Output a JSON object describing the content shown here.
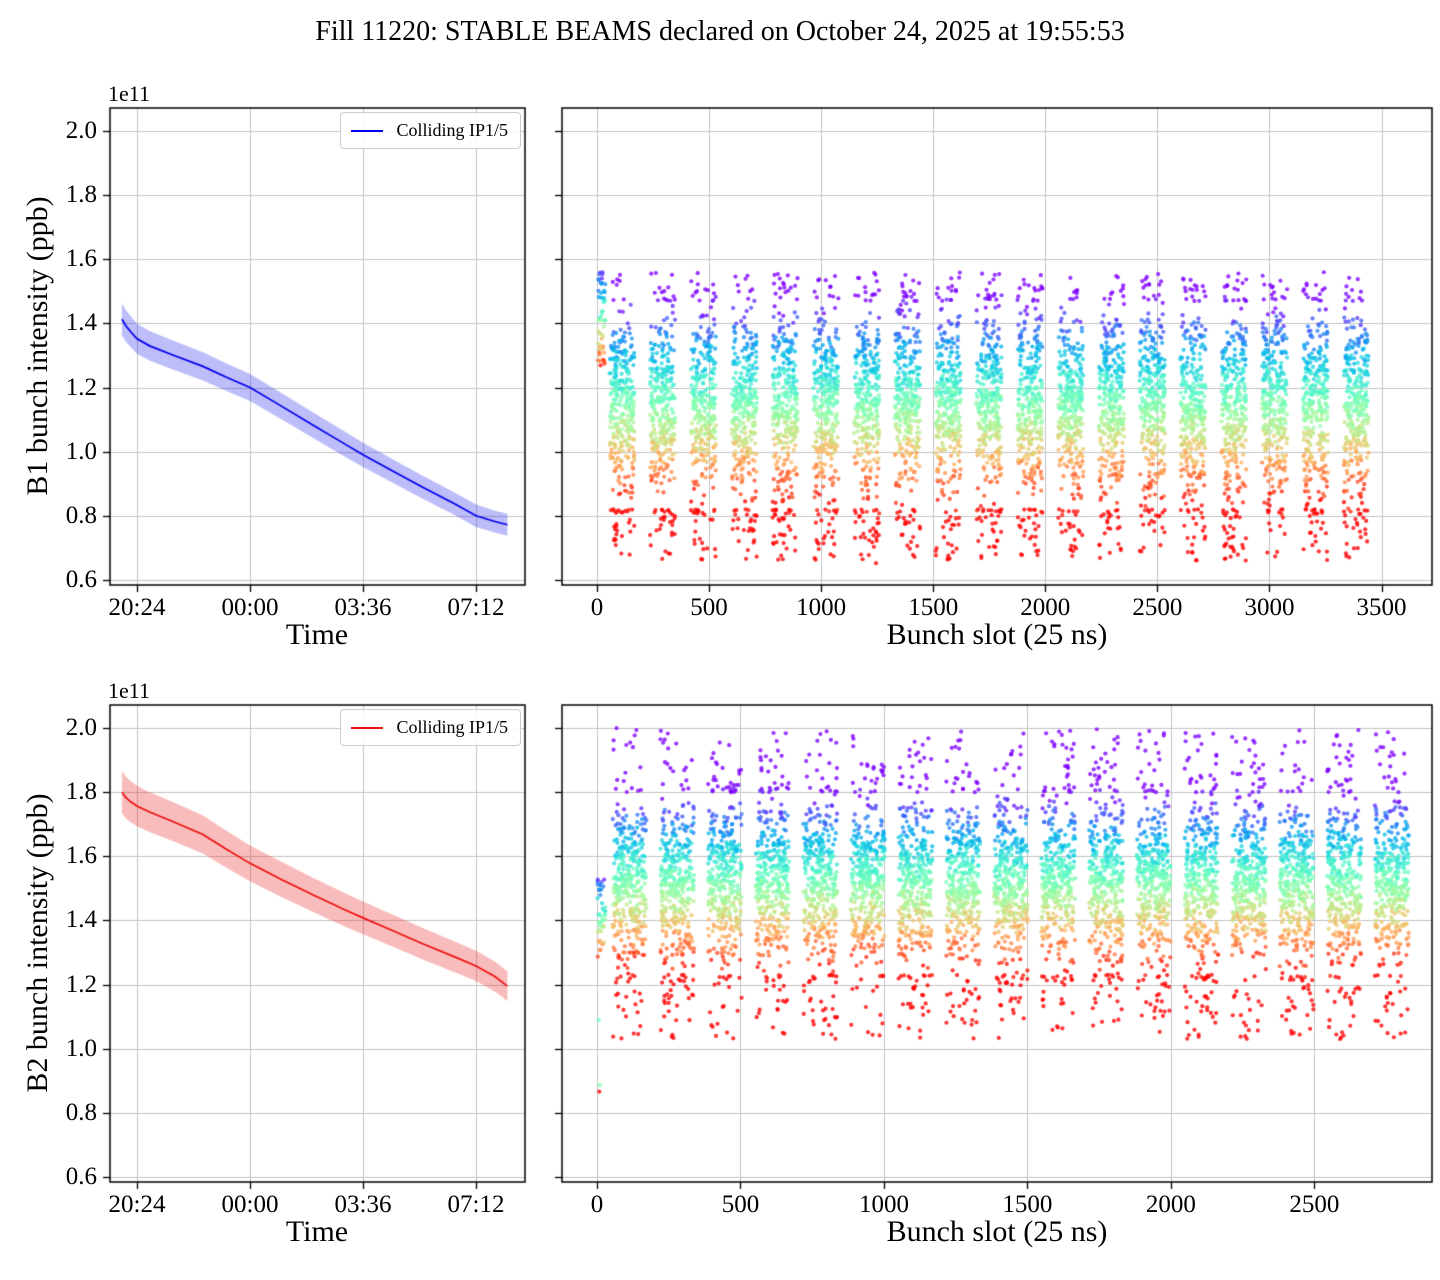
{
  "title": "Fill 11220: STABLE BEAMS declared on October 24, 2025 at 19:55:53",
  "colors": {
    "b1_line": "#0000ee",
    "b1_band": "#3232eb",
    "b2_line": "#ee1111",
    "b2_band": "#eb3030",
    "grid": "#c3c3c3",
    "axis": "#000000",
    "legend_border": "#cccccc",
    "background": "#ffffff"
  },
  "chart_data": [
    {
      "id": "b1-vs-time",
      "type": "area",
      "panel": "tl",
      "xlabel": "Time",
      "ylabel": "B1 bunch intensity (ppb)",
      "offset_text": "1e11",
      "legend": [
        {
          "label": "Colliding IP1/5",
          "color": "#0000ee"
        }
      ],
      "xlim": [
        19.54,
        32.76
      ],
      "ylim": [
        0.584,
        2.072
      ],
      "xticks": {
        "values": [
          20.4,
          24.0,
          27.6,
          31.2
        ],
        "labels": [
          "20:24",
          "00:00",
          "03:36",
          "07:12"
        ]
      },
      "yticks": {
        "values": [
          0.6,
          0.8,
          1.0,
          1.2,
          1.4,
          1.6,
          1.8,
          2.0
        ],
        "labels": [
          "0.6",
          "0.8",
          "1.0",
          "1.2",
          "1.4",
          "1.6",
          "1.8",
          "2.0"
        ]
      },
      "series": [
        {
          "name": "Colliding IP1/5",
          "x": [
            19.92,
            20.05,
            20.2,
            20.4,
            20.8,
            21.5,
            22.5,
            23.25,
            24.0,
            25.0,
            26.0,
            27.0,
            27.6,
            28.5,
            29.5,
            30.5,
            31.2,
            31.8,
            32.2
          ],
          "y": [
            1.413,
            1.392,
            1.374,
            1.352,
            1.33,
            1.303,
            1.266,
            1.232,
            1.2,
            1.142,
            1.083,
            1.025,
            0.99,
            0.942,
            0.889,
            0.838,
            0.8,
            0.782,
            0.772
          ],
          "band_halfwidth": [
            0.05,
            0.049,
            0.048,
            0.047,
            0.046,
            0.045,
            0.044,
            0.043,
            0.042,
            0.041,
            0.04,
            0.039,
            0.038,
            0.037,
            0.036,
            0.035,
            0.035,
            0.034,
            0.034
          ]
        }
      ]
    },
    {
      "id": "b1-vs-slot",
      "type": "scatter",
      "panel": "tr",
      "xlabel": "Bunch slot (25 ns)",
      "ylabel": "",
      "xlim": [
        -156,
        3725
      ],
      "ylim": [
        0.584,
        2.072
      ],
      "xticks": {
        "values": [
          0,
          500,
          1000,
          1500,
          2000,
          2500,
          3000,
          3500
        ],
        "labels": [
          "0",
          "500",
          "1000",
          "1500",
          "2000",
          "2500",
          "3000",
          "3500"
        ]
      },
      "yticks": {
        "values": [
          0.6,
          0.8,
          1.0,
          1.2,
          1.4,
          1.6,
          1.8,
          2.0
        ],
        "labels": []
      },
      "colormap": "rainbow (violet = highest intensity, red = lowest)",
      "seed": 42,
      "trains": {
        "count": 19,
        "first_start": 55,
        "width": 112,
        "period": 182,
        "points_per_train": 330,
        "dense_low": 0.82,
        "dense_high": 1.47,
        "tail_low": 0.66,
        "tail_high": 1.56,
        "tail_frac_low": 0.08,
        "tail_frac_high": 0.04
      },
      "lead_strip": {
        "x_min": 2,
        "x_max": 38,
        "y_min": 1.26,
        "y_max": 1.56,
        "count": 55
      },
      "outliers": [
        {
          "x": 1245,
          "y": 0.652,
          "t": 1.0
        }
      ]
    },
    {
      "id": "b2-vs-time",
      "type": "area",
      "panel": "bl",
      "xlabel": "Time",
      "ylabel": "B2 bunch intensity (ppb)",
      "offset_text": "1e11",
      "legend": [
        {
          "label": "Colliding IP1/5",
          "color": "#ee1111"
        }
      ],
      "xlim": [
        19.54,
        32.76
      ],
      "ylim": [
        0.584,
        2.072
      ],
      "xticks": {
        "values": [
          20.4,
          24.0,
          27.6,
          31.2
        ],
        "labels": [
          "20:24",
          "00:00",
          "03:36",
          "07:12"
        ]
      },
      "yticks": {
        "values": [
          0.6,
          0.8,
          1.0,
          1.2,
          1.4,
          1.6,
          1.8,
          2.0
        ],
        "labels": [
          "0.6",
          "0.8",
          "1.0",
          "1.2",
          "1.4",
          "1.6",
          "1.8",
          "2.0"
        ]
      },
      "series": [
        {
          "name": "Colliding IP1/5",
          "x": [
            19.92,
            20.05,
            20.2,
            20.4,
            20.8,
            21.5,
            22.5,
            23.25,
            24.0,
            25.0,
            26.0,
            27.0,
            27.6,
            28.5,
            29.5,
            30.5,
            31.2,
            31.8,
            32.2
          ],
          "y": [
            1.8,
            1.783,
            1.77,
            1.757,
            1.738,
            1.71,
            1.668,
            1.622,
            1.578,
            1.528,
            1.48,
            1.434,
            1.408,
            1.37,
            1.327,
            1.287,
            1.258,
            1.225,
            1.195
          ],
          "band_halfwidth": [
            0.066,
            0.065,
            0.064,
            0.063,
            0.062,
            0.061,
            0.059,
            0.058,
            0.056,
            0.055,
            0.053,
            0.052,
            0.051,
            0.05,
            0.049,
            0.048,
            0.047,
            0.047,
            0.046
          ]
        }
      ]
    },
    {
      "id": "b2-vs-slot",
      "type": "scatter",
      "panel": "br",
      "xlabel": "Bunch slot (25 ns)",
      "ylabel": "",
      "xlim": [
        -122,
        2910
      ],
      "ylim": [
        0.584,
        2.072
      ],
      "xticks": {
        "values": [
          0,
          500,
          1000,
          1500,
          2000,
          2500
        ],
        "labels": [
          "0",
          "500",
          "1000",
          "1500",
          "2000",
          "2500"
        ]
      },
      "yticks": {
        "values": [
          0.6,
          0.8,
          1.0,
          1.2,
          1.4,
          1.6,
          1.8,
          2.0
        ],
        "labels": []
      },
      "colormap": "rainbow (violet = highest intensity, red = lowest)",
      "seed": 7,
      "trains": {
        "count": 17,
        "first_start": 55,
        "width": 118,
        "period": 166,
        "points_per_train": 380,
        "dense_low": 1.23,
        "dense_high": 1.8,
        "tail_low": 1.03,
        "tail_high": 2.0,
        "tail_frac_low": 0.07,
        "tail_frac_high": 0.06
      },
      "lead_strip": {
        "x_min": 2,
        "x_max": 30,
        "y_min": 1.28,
        "y_max": 1.53,
        "count": 45
      },
      "outliers": [
        {
          "x": 6,
          "y": 1.089,
          "t": 0.45
        },
        {
          "x": 10,
          "y": 0.886,
          "t": 0.5
        },
        {
          "x": 8,
          "y": 0.866,
          "t": 1.0
        }
      ]
    }
  ]
}
